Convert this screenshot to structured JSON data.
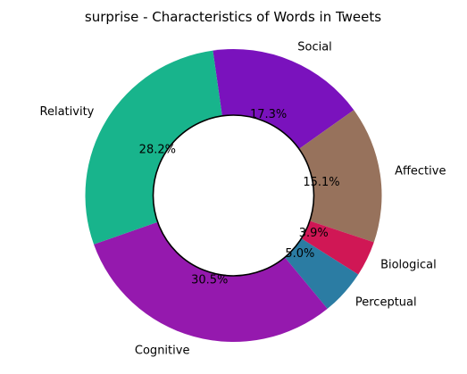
{
  "chart_data": {
    "type": "pie",
    "title": "surprise - Characteristics of Words in Tweets",
    "labels": [
      "Social",
      "Affective",
      "Biological",
      "Perceptual",
      "Cognitive",
      "Relativity"
    ],
    "values": [
      17.3,
      15.1,
      3.9,
      5.0,
      30.5,
      28.2
    ],
    "percent_labels": [
      "17.3%",
      "15.1%",
      "3.9%",
      "5.0%",
      "30.5%",
      "28.2%"
    ],
    "colors": [
      "#7a12bd",
      "#97725c",
      "#d01755",
      "#2b7ca3",
      "#9519ae",
      "#18b48c"
    ],
    "donut": true,
    "center_circle": "white with black outline",
    "start_angle_deg": 98,
    "direction": "clockwise"
  }
}
